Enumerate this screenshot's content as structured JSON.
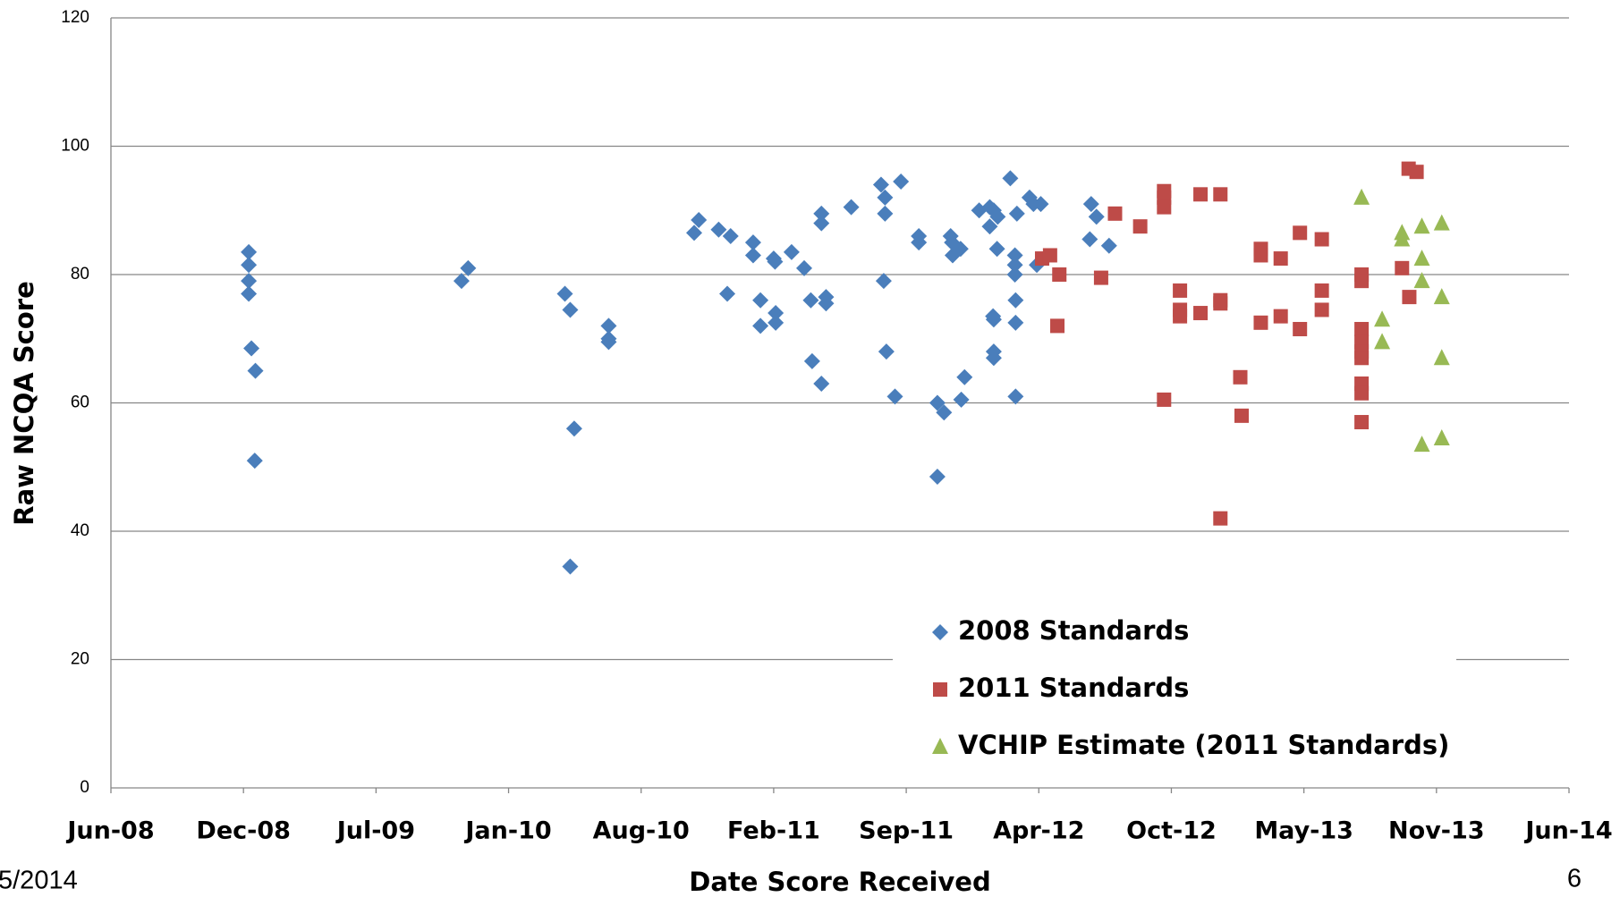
{
  "chart_data": {
    "type": "scatter",
    "xlabel": "Date Score Received",
    "ylabel": "Raw NCQA Score",
    "xlim": [
      39600,
      41800
    ],
    "xticks": [
      {
        "value": 39600,
        "label": "Jun-08"
      },
      {
        "value": 39800,
        "label": "Dec-08"
      },
      {
        "value": 40000,
        "label": "Jul-09"
      },
      {
        "value": 40200,
        "label": "Jan-10"
      },
      {
        "value": 40400,
        "label": "Aug-10"
      },
      {
        "value": 40600,
        "label": "Feb-11"
      },
      {
        "value": 40800,
        "label": "Sep-11"
      },
      {
        "value": 41000,
        "label": "Apr-12"
      },
      {
        "value": 41200,
        "label": "Oct-12"
      },
      {
        "value": 41400,
        "label": "May-13"
      },
      {
        "value": 41600,
        "label": "Nov-13"
      },
      {
        "value": 41800,
        "label": "Jun-14"
      }
    ],
    "ylim": [
      0,
      120
    ],
    "yticks": [
      0,
      20,
      40,
      60,
      80,
      100,
      120
    ],
    "grid": true,
    "legend": "lower right",
    "series": [
      {
        "name": "2008 Standards",
        "color": "#4a7ebb",
        "marker": "diamond",
        "x": [
          39808,
          39808,
          39808,
          39808,
          39812,
          39818,
          39817,
          40129,
          40139,
          40285,
          40293,
          40299,
          40293,
          40351,
          40351,
          40351,
          40480,
          40487,
          40517,
          40535,
          40530,
          40569,
          40569,
          40580,
          40580,
          40600,
          40602,
          40603,
          40603,
          40627,
          40646,
          40656,
          40658,
          40672,
          40672,
          40672,
          40679,
          40679,
          40717,
          40762,
          40768,
          40768,
          40766,
          40770,
          40783,
          40792,
          40819,
          40819,
          40847,
          40847,
          40857,
          40867,
          40869,
          40870,
          40882,
          40883,
          40888,
          40910,
          40926,
          40926,
          40932,
          40938,
          40931,
          40932,
          40932,
          40932,
          40937,
          40957,
          40964,
          40964,
          40964,
          40967,
          40965,
          40965,
          40965,
          40986,
          40992,
          41003,
          40997,
          41079,
          41077,
          41087,
          41106
        ],
        "values": [
          83.5,
          81.5,
          79,
          77,
          68.5,
          65,
          51,
          79,
          81,
          77,
          74.5,
          56,
          34.5,
          72,
          70,
          69.5,
          86.5,
          88.5,
          87,
          86,
          77,
          85,
          83,
          76,
          72,
          82.5,
          82,
          74,
          72.5,
          83.5,
          81,
          76,
          66.5,
          89.5,
          88,
          63,
          76.5,
          75.5,
          90.5,
          94,
          92,
          89.5,
          79,
          68,
          61,
          94.5,
          86,
          85,
          48.5,
          60,
          58.5,
          86,
          85,
          83,
          84,
          60.5,
          64,
          90,
          87.5,
          90.5,
          90,
          89,
          73.5,
          73,
          67,
          68,
          84,
          95,
          83,
          81.5,
          80,
          89.5,
          76,
          72.5,
          61,
          92,
          91,
          91,
          81.5,
          91,
          85.5,
          89,
          84.5
        ]
      },
      {
        "name": "2011 Standards",
        "color": "#be4b48",
        "marker": "square",
        "x": [
          41005,
          41017,
          41031,
          41028,
          41094,
          41115,
          41153,
          41189,
          41189,
          41189,
          41189,
          41213,
          41213,
          41213,
          41244,
          41244,
          41274,
          41274,
          41274,
          41274,
          41304,
          41306,
          41335,
          41335,
          41335,
          41365,
          41365,
          41394,
          41394,
          41427,
          41427,
          41427,
          41487,
          41487,
          41487,
          41487,
          41487,
          41487,
          41487,
          41487,
          41487,
          41548,
          41558,
          41570,
          41559
        ],
        "values": [
          82.5,
          83,
          80,
          72,
          79.5,
          89.5,
          87.5,
          93,
          92,
          90.5,
          60.5,
          77.5,
          74.5,
          73.5,
          74,
          92.5,
          92.5,
          76,
          75.5,
          42,
          64,
          58,
          84,
          83,
          72.5,
          82.5,
          73.5,
          86.5,
          71.5,
          85.5,
          77.5,
          74.5,
          80,
          79,
          71.5,
          69.5,
          68,
          67,
          63,
          61.5,
          57,
          81,
          96.5,
          96,
          76.5
        ]
      },
      {
        "name": "VCHIP Estimate (2011 Standards)",
        "color": "#98b954",
        "marker": "triangle",
        "x": [
          41487,
          41518,
          41518,
          41548,
          41548,
          41578,
          41578,
          41578,
          41578,
          41608,
          41608,
          41608,
          41608
        ],
        "values": [
          92,
          73,
          69.5,
          86.5,
          85.5,
          87.5,
          82.5,
          79,
          53.5,
          88,
          76.5,
          67,
          54.5
        ]
      }
    ]
  },
  "footer": {
    "date": "5/2014",
    "page": "6"
  }
}
